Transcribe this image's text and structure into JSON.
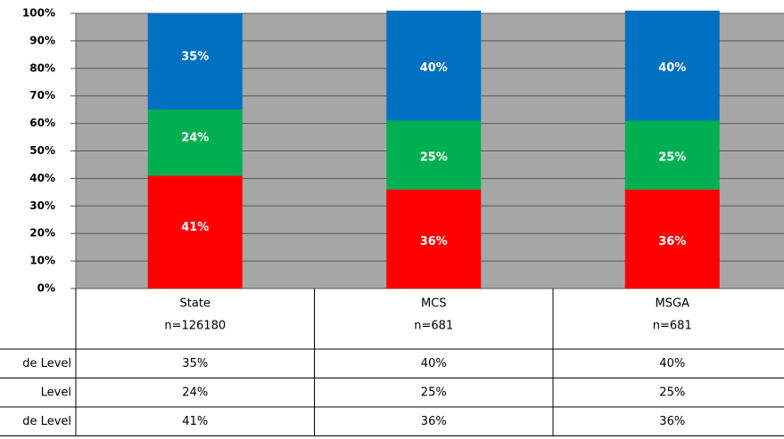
{
  "chart_data": {
    "type": "stacked_bar",
    "categories": [
      "State",
      "MCS",
      "MSGA"
    ],
    "category_counts": [
      "n=126180",
      "n=681",
      "n=681"
    ],
    "series": [
      {
        "name": "de Level",
        "color": "#ff0000",
        "values": [
          41,
          36,
          36
        ],
        "value_labels": [
          "41%",
          "36%",
          "36%"
        ]
      },
      {
        "name": "Level",
        "color": "#00b050",
        "values": [
          24,
          25,
          25
        ],
        "value_labels": [
          "24%",
          "25%",
          "25%"
        ]
      },
      {
        "name": "de Level",
        "color": "#0070c0",
        "values": [
          35,
          40,
          40
        ],
        "value_labels": [
          "35%",
          "40%",
          "40%"
        ]
      }
    ],
    "ylim": [
      0,
      100
    ],
    "yticks": [
      {
        "value": 0,
        "label": "0%"
      },
      {
        "value": 10,
        "label": "10%"
      },
      {
        "value": 20,
        "label": "20%"
      },
      {
        "value": 30,
        "label": "30%"
      },
      {
        "value": 40,
        "label": "40%"
      },
      {
        "value": 50,
        "label": "50%"
      },
      {
        "value": 60,
        "label": "60%"
      },
      {
        "value": 70,
        "label": "70%"
      },
      {
        "value": 80,
        "label": "80%"
      },
      {
        "value": 90,
        "label": "90%"
      },
      {
        "value": 100,
        "label": "100%"
      }
    ],
    "grid": true,
    "plot_background": "#a6a6a6"
  }
}
